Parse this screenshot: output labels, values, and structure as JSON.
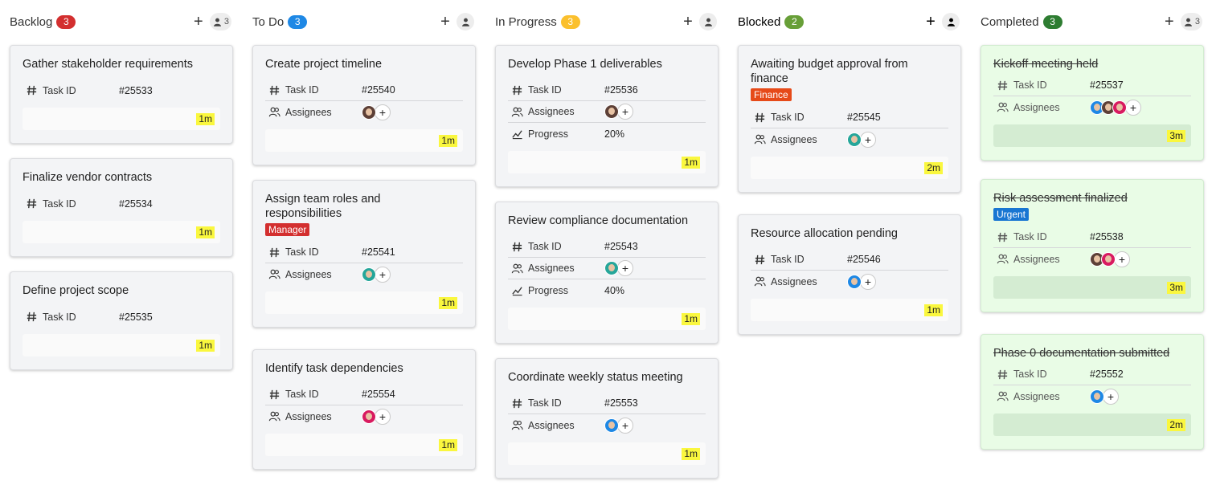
{
  "columns": [
    {
      "title": "Backlog",
      "count": "3",
      "color": "#d32f2f",
      "members": "3",
      "cards": [
        {
          "title": "Gather stakeholder requirements",
          "task_id": "#25533",
          "time": "1m"
        },
        {
          "title": "Finalize vendor contracts",
          "task_id": "#25534",
          "time": "1m"
        },
        {
          "title": "Define project scope",
          "task_id": "#25535",
          "time": "1m"
        }
      ]
    },
    {
      "title": "To Do",
      "count": "3",
      "color": "#1e88e5",
      "members": "",
      "cards": [
        {
          "title": "Create project timeline",
          "task_id": "#25540",
          "assignees": [
            "dark"
          ],
          "time": "1m"
        },
        {
          "title": "Assign team roles and responsibilities",
          "tag": "Manager",
          "tag_color": "#d32f2f",
          "task_id": "#25541",
          "assignees": [
            "teal"
          ],
          "time": "1m"
        },
        {
          "title": "Identify task dependencies",
          "task_id": "#25554",
          "assignees": [
            "pink"
          ],
          "time": "1m"
        }
      ]
    },
    {
      "title": "In Progress",
      "count": "3",
      "color": "#fbc02d",
      "members": "",
      "cards": [
        {
          "title": "Develop Phase 1 deliverables",
          "task_id": "#25536",
          "assignees": [
            "dark"
          ],
          "progress": "20%",
          "time": "1m"
        },
        {
          "title": "Review compliance documentation",
          "task_id": "#25543",
          "assignees": [
            "teal"
          ],
          "progress": "40%",
          "time": "1m"
        },
        {
          "title": "Coordinate weekly status meeting",
          "task_id": "#25553",
          "assignees": [
            "blue"
          ],
          "time": "1m"
        }
      ]
    },
    {
      "title": "Blocked",
      "count": "2",
      "color": "#689f38",
      "members": "",
      "cards": [
        {
          "title": "Awaiting budget approval from finance",
          "tag": "Finance",
          "tag_color": "#e64a19",
          "task_id": "#25545",
          "assignees": [
            "teal"
          ],
          "time": "2m"
        },
        {
          "title": "Resource allocation pending",
          "task_id": "#25546",
          "assignees": [
            "blue"
          ],
          "time": "1m"
        }
      ]
    },
    {
      "title": "Completed",
      "count": "3",
      "color": "#2e7d32",
      "members": "3",
      "cards": [
        {
          "title": "Kickoff meeting held",
          "task_id": "#25537",
          "assignees": [
            "blue",
            "dark",
            "pink"
          ],
          "time": "3m",
          "done": true
        },
        {
          "title": "Risk assessment finalized",
          "tag": "Urgent",
          "tag_color": "#1976d2",
          "task_id": "#25538",
          "assignees": [
            "dark",
            "pink"
          ],
          "time": "3m",
          "done": true
        },
        {
          "title": "Phase 0 documentation submitted",
          "task_id": "#25552",
          "assignees": [
            "blue"
          ],
          "time": "2m",
          "done": true
        }
      ]
    }
  ],
  "labels": {
    "task_id": "Task ID",
    "assignees": "Assignees",
    "progress": "Progress",
    "add": "+"
  },
  "avatar_colors": {
    "dark": "#5d4037",
    "teal": "#26a69a",
    "pink": "#d81b60",
    "blue": "#1e88e5"
  }
}
